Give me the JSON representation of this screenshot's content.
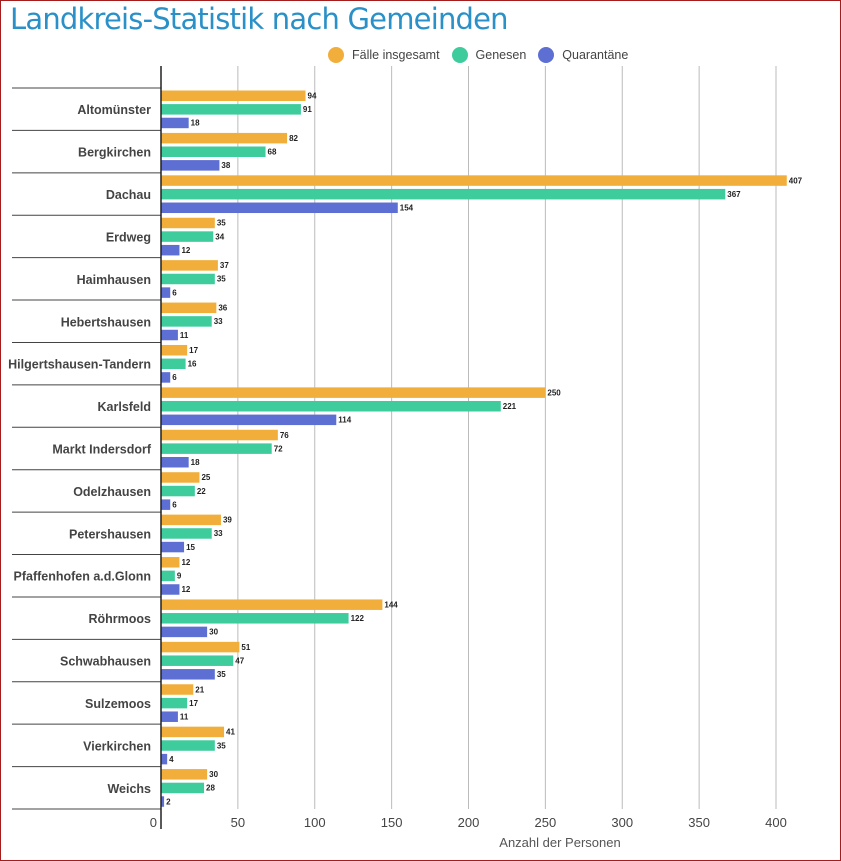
{
  "chart_data": {
    "type": "bar",
    "orientation": "horizontal",
    "title": "Landkreis-Statistik nach Gemeinden",
    "xlabel": "Anzahl der Personen",
    "ylabel": "",
    "xlim": [
      0,
      420
    ],
    "xticks": [
      0,
      50,
      100,
      150,
      200,
      250,
      300,
      350,
      400
    ],
    "grid": true,
    "legend_position": "top",
    "categories": [
      "Altomünster",
      "Bergkirchen",
      "Dachau",
      "Erdweg",
      "Haimhausen",
      "Hebertshausen",
      "Hilgertshausen-Tandern",
      "Karlsfeld",
      "Markt Indersdorf",
      "Odelzhausen",
      "Petershausen",
      "Pfaffenhofen a.d.Glonn",
      "Röhrmoos",
      "Schwabhausen",
      "Sulzemoos",
      "Vierkirchen",
      "Weichs"
    ],
    "series": [
      {
        "name": "Fälle insgesamt",
        "color": "#f2ae3a",
        "values": [
          94,
          82,
          407,
          35,
          37,
          36,
          17,
          250,
          76,
          25,
          39,
          12,
          144,
          51,
          21,
          41,
          30
        ]
      },
      {
        "name": "Genesen",
        "color": "#3fcc9c",
        "values": [
          91,
          68,
          367,
          34,
          35,
          33,
          16,
          221,
          72,
          22,
          33,
          9,
          122,
          47,
          17,
          35,
          28
        ]
      },
      {
        "name": "Quarantäne",
        "color": "#5d6fd3",
        "values": [
          18,
          38,
          154,
          12,
          6,
          11,
          6,
          114,
          18,
          6,
          15,
          12,
          30,
          35,
          11,
          4,
          2
        ]
      }
    ]
  }
}
